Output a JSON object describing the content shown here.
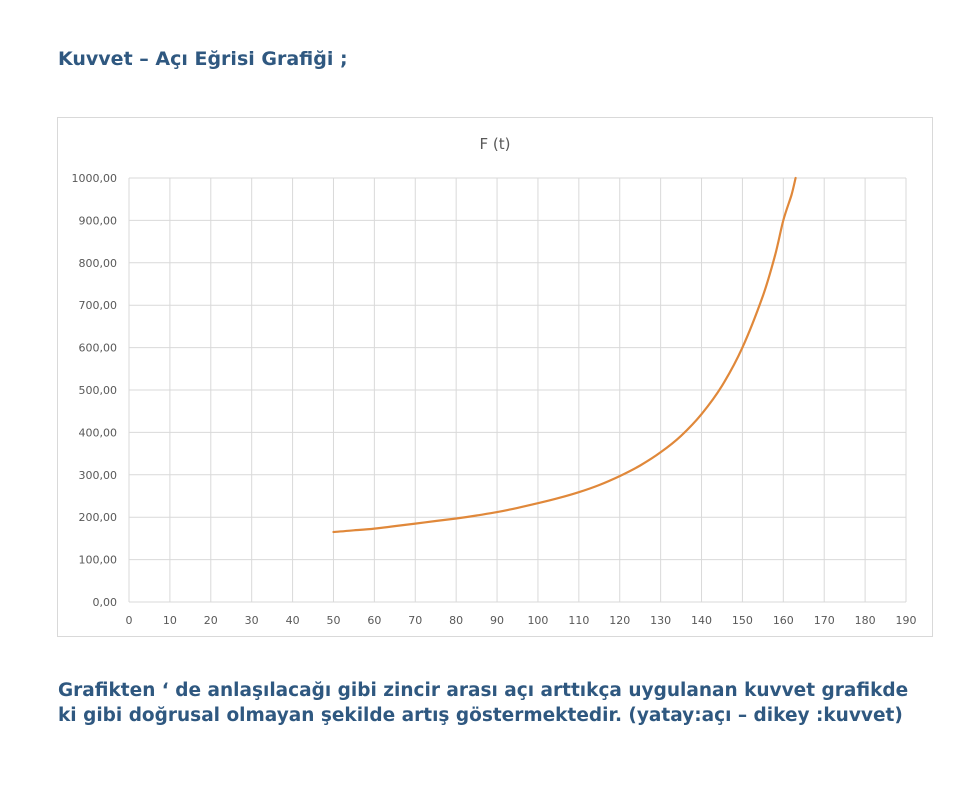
{
  "heading": "Kuvvet – Açı  Eğrisi Grafiği ;",
  "caption": {
    "line1": "Grafikten ‘ de anlaşılacağı gibi zincir arası açı arttıkça uygulanan kuvvet grafikde",
    "line2": "ki gibi doğrusal olmayan şekilde artış göstermektedir. (yatay:açı – dikey :kuvvet)"
  },
  "colors": {
    "text_accent": "#2f5880",
    "series": "#e0883a",
    "grid": "#d9d9d9",
    "axis_text": "#595959"
  },
  "chart_data": {
    "type": "line",
    "title": "F (t)",
    "xlabel": "",
    "ylabel": "",
    "xlim": [
      0,
      190
    ],
    "ylim": [
      0,
      1000
    ],
    "grid": true,
    "legend": "none",
    "x_ticks": [
      "0",
      "10",
      "20",
      "30",
      "40",
      "50",
      "60",
      "70",
      "80",
      "90",
      "100",
      "110",
      "120",
      "130",
      "140",
      "150",
      "160",
      "170",
      "180",
      "190"
    ],
    "y_ticks": [
      "0,00",
      "100,00",
      "200,00",
      "300,00",
      "400,00",
      "500,00",
      "600,00",
      "700,00",
      "800,00",
      "900,00",
      "1000,00"
    ],
    "series": [
      {
        "x": [
          50,
          55,
          60,
          65,
          70,
          75,
          80,
          85,
          90,
          95,
          100,
          105,
          110,
          115,
          120,
          125,
          130,
          135,
          140,
          145,
          150,
          155,
          158,
          160,
          162,
          163
        ],
        "y": [
          165,
          169,
          173,
          179,
          185,
          191,
          197,
          204,
          212,
          222,
          233,
          245,
          259,
          276,
          297,
          322,
          353,
          392,
          443,
          510,
          600,
          722,
          818,
          900,
          960,
          1000
        ]
      }
    ]
  }
}
